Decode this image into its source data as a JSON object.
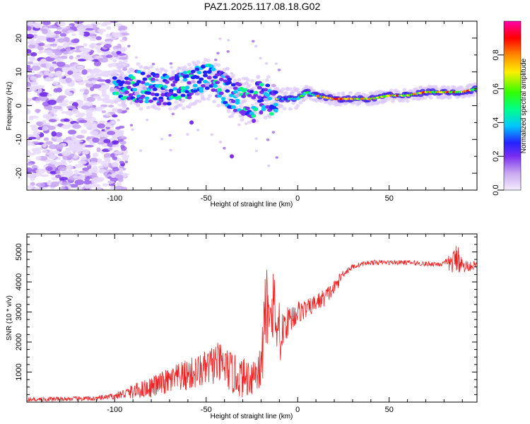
{
  "title": "PAZ1.2025.117.08.18.G02",
  "chart_data": [
    {
      "type": "heatmap",
      "name": "spectrogram",
      "xlabel": "Height of straight line (km)",
      "ylabel": "Frequency (Hz)",
      "xlim": [
        -148,
        98
      ],
      "ylim": [
        -25,
        25
      ],
      "xticks": [
        -100,
        -50,
        0,
        50
      ],
      "yticks": [
        -20,
        -10,
        0,
        10,
        20
      ],
      "colorbar": {
        "label": "Normalized spectral amplitude",
        "range": [
          0,
          1
        ],
        "ticks": [
          "0.0",
          "0.2",
          "0.4",
          "0.6",
          "0.8"
        ],
        "colormap": [
          "#f3ecff",
          "#c9a8f0",
          "#7b2ef0",
          "#2222ff",
          "#00c8ff",
          "#00ff88",
          "#33ff00",
          "#ffee00",
          "#ff8800",
          "#ff0000",
          "#ff00aa"
        ]
      },
      "signal_trace": {
        "description_free_values": true,
        "x": [
          -100,
          -90,
          -80,
          -70,
          -60,
          -50,
          -45,
          -40,
          -35,
          -30,
          -25,
          -20,
          -15,
          -10,
          -5,
          0,
          5,
          10,
          20,
          30,
          40,
          50,
          60,
          70,
          80,
          90,
          98
        ],
        "y": [
          7,
          6,
          5,
          5,
          6,
          8,
          7,
          5,
          3,
          2,
          1,
          3,
          2,
          2,
          2,
          2,
          4,
          3,
          2,
          2,
          2,
          3,
          3,
          4,
          4,
          4,
          5
        ]
      },
      "noise_region": {
        "x": [
          -148,
          -100
        ],
        "y": [
          -25,
          25
        ]
      }
    },
    {
      "type": "line",
      "name": "snr",
      "xlabel": "Height of straight line (km)",
      "ylabel": "SNR (10 * v/v)",
      "xlim": [
        -148,
        98
      ],
      "ylim": [
        0,
        5600
      ],
      "xticks": [
        -100,
        -50,
        0,
        50
      ],
      "yticks": [
        1000,
        2000,
        3000,
        4000,
        5000
      ],
      "line_color": "#ee2222",
      "series": [
        {
          "name": "SNR",
          "x": [
            -148,
            -130,
            -110,
            -100,
            -90,
            -80,
            -70,
            -60,
            -50,
            -45,
            -40,
            -35,
            -30,
            -25,
            -20,
            -17,
            -15,
            -12,
            -10,
            -8,
            -5,
            0,
            5,
            10,
            15,
            20,
            25,
            30,
            35,
            40,
            50,
            60,
            70,
            80,
            85,
            88,
            90,
            95,
            98
          ],
          "y": [
            80,
            100,
            120,
            200,
            350,
            500,
            700,
            900,
            1100,
            1300,
            1200,
            900,
            800,
            900,
            1100,
            3200,
            3600,
            3000,
            1800,
            2500,
            2700,
            3000,
            3100,
            3300,
            3500,
            3800,
            4300,
            4500,
            4600,
            4650,
            4650,
            4650,
            4600,
            4600,
            4650,
            4900,
            4500,
            4550,
            4550
          ],
          "noise_amp": [
            80,
            80,
            80,
            100,
            250,
            350,
            450,
            550,
            600,
            700,
            700,
            700,
            650,
            700,
            800,
            1500,
            1500,
            1300,
            800,
            600,
            500,
            400,
            300,
            300,
            300,
            250,
            150,
            90,
            80,
            80,
            80,
            80,
            80,
            100,
            400,
            600,
            250,
            150,
            120
          ]
        }
      ]
    }
  ]
}
